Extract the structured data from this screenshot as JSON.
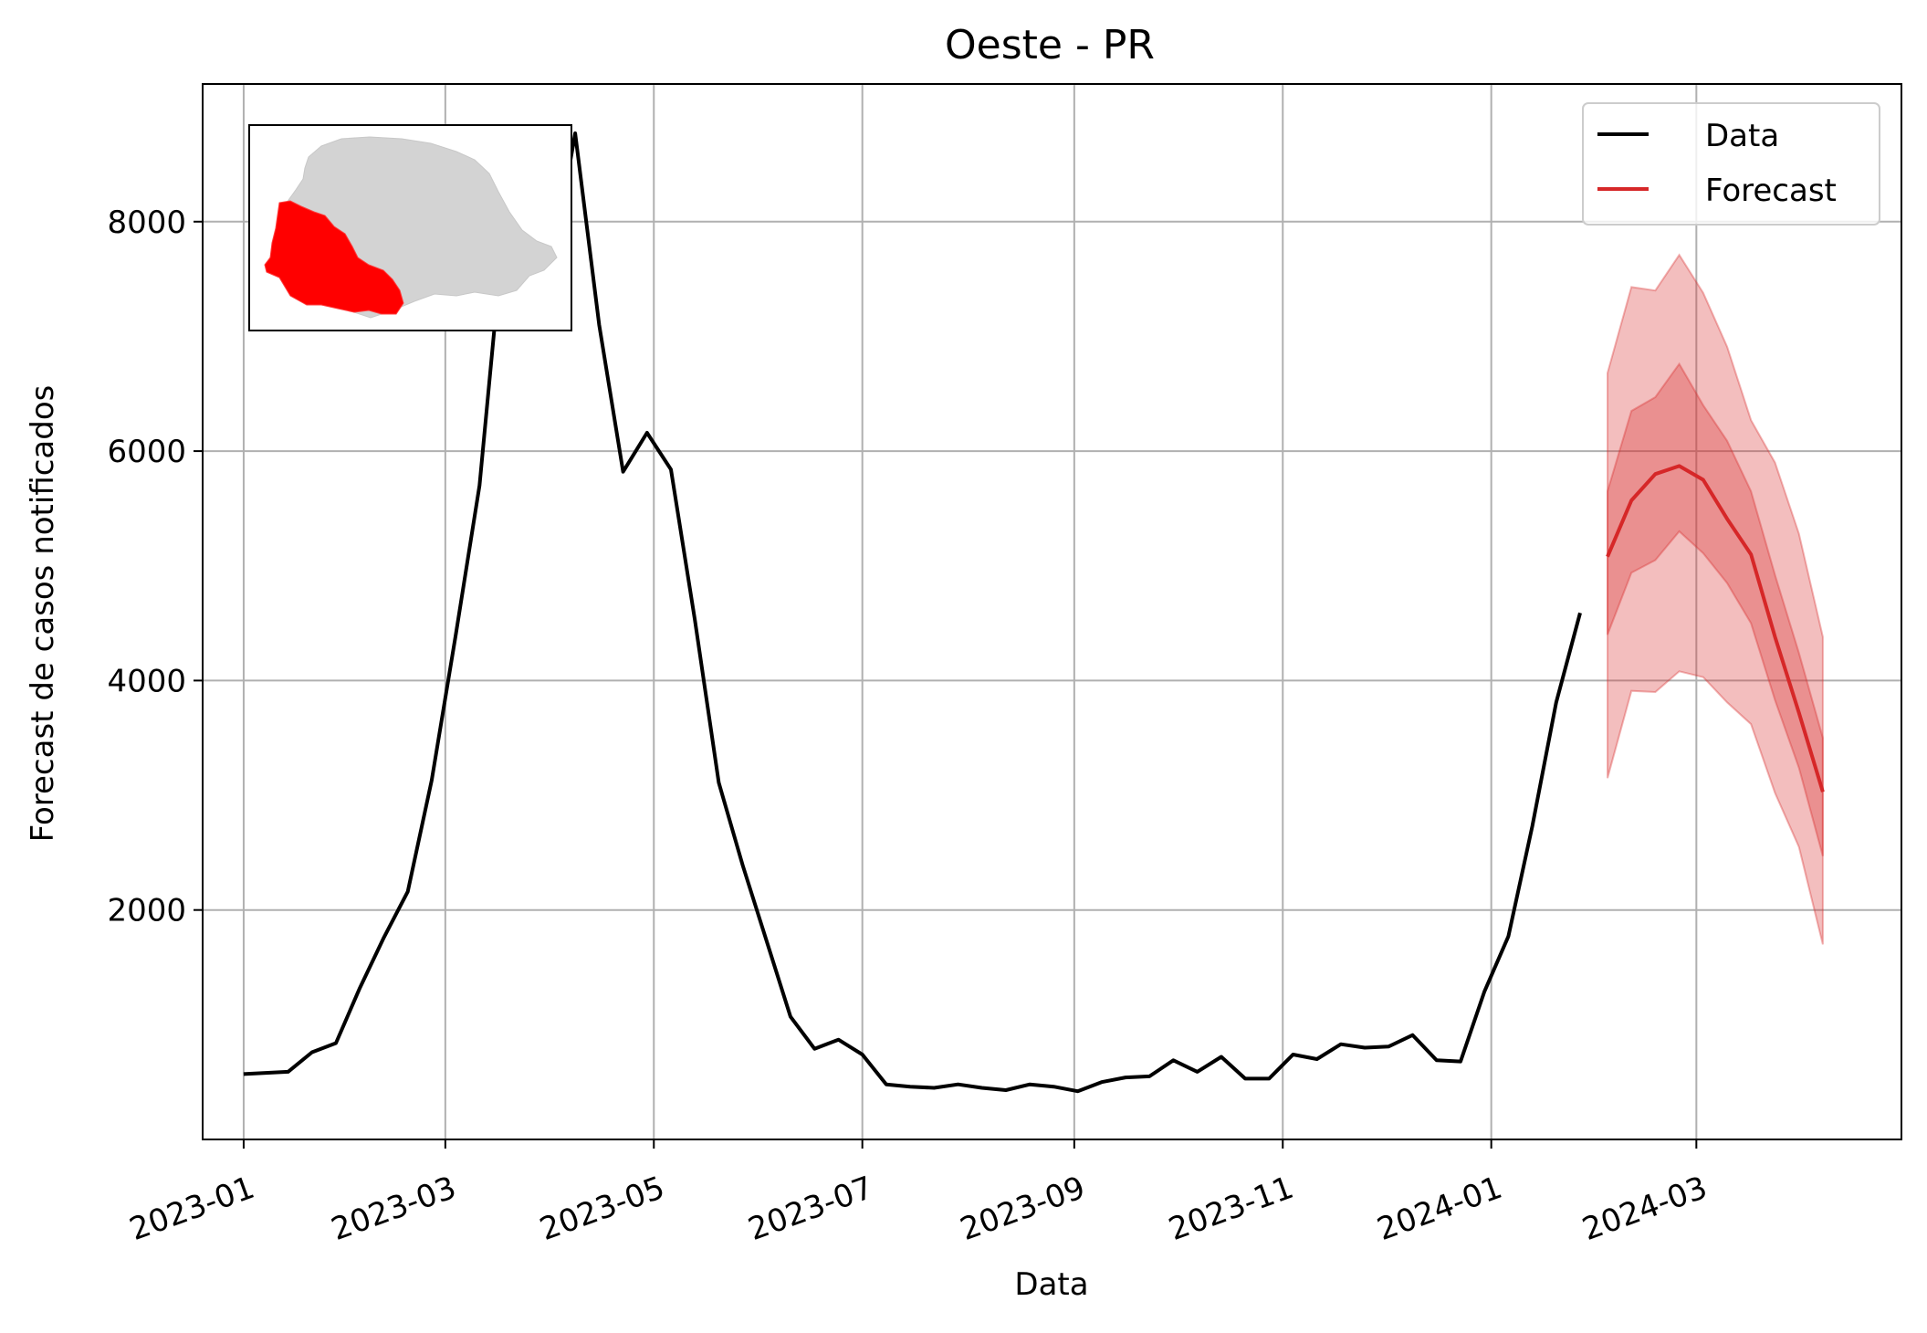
{
  "chart_data": {
    "type": "line",
    "title": "Oeste - PR",
    "xlabel": "Data",
    "ylabel": "Forecast de casos notificados",
    "x_axis_type": "date",
    "xlim": [
      "2022-12-20",
      "2024-04-30"
    ],
    "ylim": [
      0,
      9200
    ],
    "grid": true,
    "legend_position": "top-right",
    "x_ticks": [
      "2023-01",
      "2023-03",
      "2023-05",
      "2023-07",
      "2023-09",
      "2023-11",
      "2024-01",
      "2024-03"
    ],
    "y_ticks": [
      2000,
      4000,
      6000,
      8000
    ],
    "series": [
      {
        "name": "Data",
        "color": "#000000",
        "points": [
          [
            "2023-01-01",
            570
          ],
          [
            "2023-01-14",
            590
          ],
          [
            "2023-01-21",
            760
          ],
          [
            "2023-01-28",
            840
          ],
          [
            "2023-02-04",
            1320
          ],
          [
            "2023-02-11",
            1760
          ],
          [
            "2023-02-18",
            2160
          ],
          [
            "2023-02-25",
            3130
          ],
          [
            "2023-03-04",
            4390
          ],
          [
            "2023-03-11",
            5700
          ],
          [
            "2023-03-18",
            7900
          ],
          [
            "2023-03-25",
            8450
          ],
          [
            "2023-04-01",
            7580
          ],
          [
            "2023-04-08",
            8770
          ],
          [
            "2023-04-15",
            7100
          ],
          [
            "2023-04-22",
            5820
          ],
          [
            "2023-04-29",
            6160
          ],
          [
            "2023-05-06",
            5840
          ],
          [
            "2023-05-13",
            4530
          ],
          [
            "2023-05-20",
            3110
          ],
          [
            "2023-05-27",
            2390
          ],
          [
            "2023-06-03",
            1730
          ],
          [
            "2023-06-10",
            1070
          ],
          [
            "2023-06-17",
            790
          ],
          [
            "2023-06-24",
            870
          ],
          [
            "2023-07-01",
            740
          ],
          [
            "2023-07-08",
            480
          ],
          [
            "2023-07-15",
            460
          ],
          [
            "2023-07-22",
            450
          ],
          [
            "2023-07-29",
            480
          ],
          [
            "2023-08-05",
            450
          ],
          [
            "2023-08-12",
            430
          ],
          [
            "2023-08-19",
            480
          ],
          [
            "2023-08-26",
            460
          ],
          [
            "2023-09-02",
            420
          ],
          [
            "2023-09-09",
            500
          ],
          [
            "2023-09-16",
            540
          ],
          [
            "2023-09-23",
            550
          ],
          [
            "2023-09-30",
            690
          ],
          [
            "2023-10-07",
            590
          ],
          [
            "2023-10-14",
            720
          ],
          [
            "2023-10-21",
            530
          ],
          [
            "2023-10-28",
            530
          ],
          [
            "2023-11-04",
            740
          ],
          [
            "2023-11-11",
            700
          ],
          [
            "2023-11-18",
            830
          ],
          [
            "2023-11-25",
            800
          ],
          [
            "2023-12-02",
            810
          ],
          [
            "2023-12-09",
            910
          ],
          [
            "2023-12-16",
            690
          ],
          [
            "2023-12-23",
            680
          ],
          [
            "2023-12-30",
            1290
          ],
          [
            "2024-01-06",
            1770
          ],
          [
            "2024-01-13",
            2730
          ],
          [
            "2024-01-20",
            3810
          ],
          [
            "2024-01-27",
            4590
          ]
        ]
      },
      {
        "name": "Forecast",
        "color": "#d62728",
        "x": [
          "2024-02-04",
          "2024-02-11",
          "2024-02-18",
          "2024-02-25",
          "2024-03-03",
          "2024-03-10",
          "2024-03-17",
          "2024-03-24",
          "2024-03-31",
          "2024-04-07"
        ],
        "median": [
          5080,
          5570,
          5800,
          5870,
          5750,
          5410,
          5100,
          4380,
          3720,
          3030
        ],
        "inner_lower": [
          4400,
          4940,
          5050,
          5300,
          5110,
          4850,
          4500,
          3830,
          3240,
          2470
        ],
        "inner_upper": [
          5650,
          6350,
          6470,
          6760,
          6400,
          6090,
          5650,
          4920,
          4240,
          3500
        ],
        "outer_lower": [
          3150,
          3910,
          3900,
          4080,
          4030,
          3810,
          3620,
          3020,
          2550,
          1700
        ],
        "outer_upper": [
          6680,
          7430,
          7400,
          7710,
          7380,
          6910,
          6270,
          5900,
          5280,
          4380
        ]
      }
    ]
  },
  "inset": {
    "map_highlight_color": "#ff0000",
    "map_base_color": "#d3d3d3"
  }
}
